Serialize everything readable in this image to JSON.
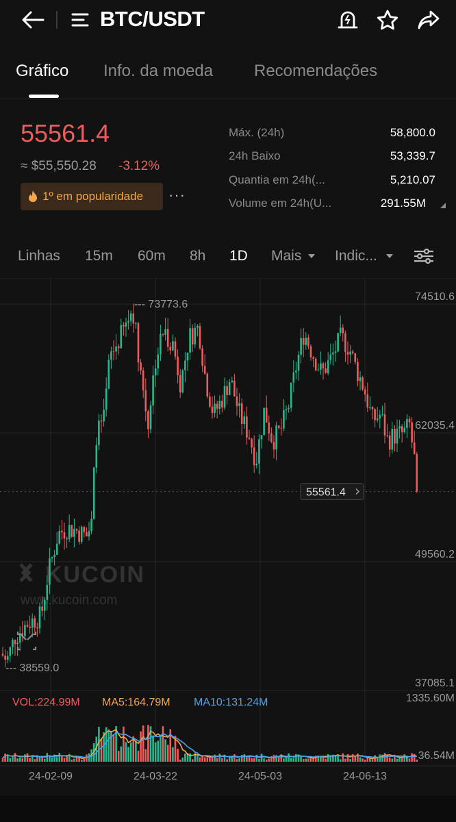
{
  "header": {
    "title": "BTC/USDT"
  },
  "tabs": [
    {
      "label": "Gráfico"
    },
    {
      "label": "Info. da moeda"
    },
    {
      "label": "Recomendações"
    }
  ],
  "ticker": {
    "price": "55561.4",
    "approx": "≈ $55,550.28",
    "change": "-3.12%",
    "popularity": "1º em popularidade",
    "more": "···"
  },
  "stats": [
    {
      "label": "Máx. (24h)",
      "value": "58,800.0"
    },
    {
      "label": "24h Baixo",
      "value": "53,339.7"
    },
    {
      "label": "Quantia em 24h(...",
      "value": "5,210.07"
    },
    {
      "label": "Volume em 24h(U...",
      "value": "291.55M"
    }
  ],
  "intervals": [
    {
      "label": "Linhas"
    },
    {
      "label": "15m"
    },
    {
      "label": "60m"
    },
    {
      "label": "8h"
    },
    {
      "label": "1D"
    },
    {
      "label": "Mais"
    },
    {
      "label": "Indic..."
    }
  ],
  "colors": {
    "up": "#26b88f",
    "down": "#f15b5b",
    "ma5": "#f3a64a",
    "ma10": "#4aa3e8"
  },
  "chart_data": {
    "type": "candlestick",
    "y_axis_labels": [
      "74510.6",
      "62035.4",
      "49560.2",
      "37085.1"
    ],
    "ylim": [
      37085.1,
      74510.6
    ],
    "max_marker": "--- 73773.6",
    "min_marker": "--- 38559.0",
    "max_value": 73773.6,
    "min_value": 38559.0,
    "last_price_label": "55561.4",
    "last_price": 55561.4,
    "x_labels": [
      "24-02-09",
      "24-03-22",
      "24-05-03",
      "24-06-13"
    ],
    "watermark": "KUCOIN",
    "watermark_url": "www.kucoin.com",
    "volume": {
      "vol_label": "VOL:224.99M",
      "ma5_label": "MA5:164.79M",
      "ma10_label": "MA10:131.24M",
      "axis_top": "1335.60M",
      "axis_bottom": "36.54M"
    }
  }
}
